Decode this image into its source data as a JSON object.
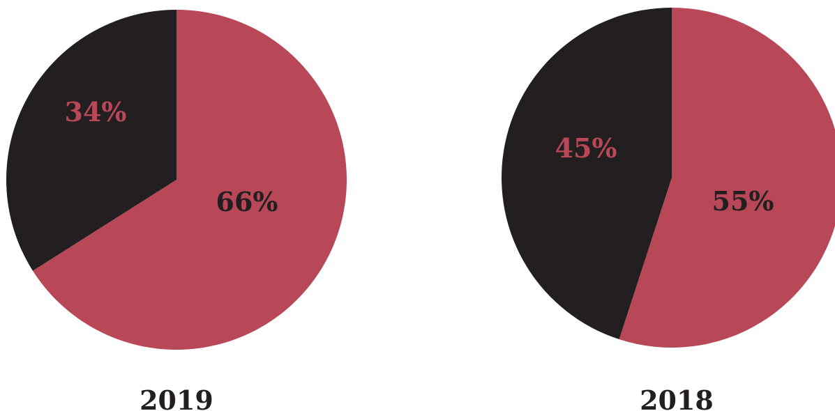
{
  "colors": {
    "primary": "#b84857",
    "secondary": "#231f20",
    "background": "#ffffff"
  },
  "chart_data": [
    {
      "type": "pie",
      "title": "2019",
      "start_angle": "top",
      "direction": "clockwise",
      "slices": [
        {
          "label": "66%",
          "value": 66,
          "color": "#b84857",
          "label_color": "#231f20"
        },
        {
          "label": "34%",
          "value": 34,
          "color": "#231f20",
          "label_color": "#b84857"
        }
      ]
    },
    {
      "type": "pie",
      "title": "2018",
      "start_angle": "top",
      "direction": "clockwise",
      "slices": [
        {
          "label": "55%",
          "value": 55,
          "color": "#b84857",
          "label_color": "#231f20"
        },
        {
          "label": "45%",
          "value": 45,
          "color": "#231f20",
          "label_color": "#b84857"
        }
      ]
    }
  ]
}
